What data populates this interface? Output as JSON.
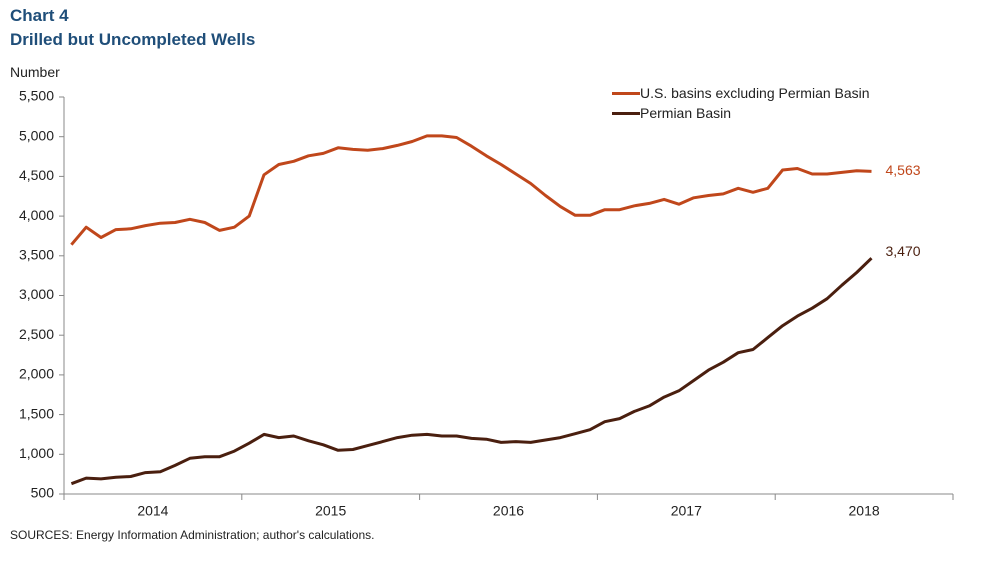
{
  "chart_data": {
    "type": "line",
    "title": "Chart 4",
    "subtitle": "Drilled but Uncompleted Wells",
    "y_label": "Number",
    "source": "SOURCES: Energy Information  Administration; author's calculations.",
    "x_labels": [
      "2014",
      "2015",
      "2016",
      "2017",
      "2018"
    ],
    "ylim": [
      500,
      5500
    ],
    "yticks": [
      500,
      {
        "value": 1000,
        "label": "1,000"
      },
      {
        "value": 1500,
        "label": "1,500"
      },
      {
        "value": 2000,
        "label": "2,000"
      },
      {
        "value": 2500,
        "label": "2,500"
      },
      {
        "value": 3000,
        "label": "3,000"
      },
      {
        "value": 3500,
        "label": "3,500"
      },
      {
        "value": 4000,
        "label": "4,000"
      },
      {
        "value": 4500,
        "label": "4,500"
      },
      {
        "value": 5000,
        "label": "5,000"
      },
      {
        "value": 5500,
        "label": "5,500"
      }
    ],
    "grid": false,
    "legend": "upper right",
    "series": [
      {
        "name": "U.S. basins excluding Permian Basin",
        "color": "#c0471b",
        "values": [
          3640,
          3860,
          3730,
          3830,
          3840,
          3880,
          3910,
          3920,
          3960,
          3920,
          3820,
          3860,
          4000,
          4520,
          4650,
          4690,
          4760,
          4790,
          4860,
          4840,
          4830,
          4850,
          4890,
          4940,
          5010,
          5010,
          4990,
          4880,
          4760,
          4650,
          4530,
          4410,
          4260,
          4120,
          4010,
          4010,
          4080,
          4080,
          4130,
          4160,
          4210,
          4150,
          4230,
          4260,
          4280,
          4350,
          4300,
          4350,
          4580,
          4600,
          4530,
          4530,
          4550,
          4570,
          4563
        ],
        "value_labels": [
          null,
          null,
          null,
          null,
          null,
          null,
          null,
          null,
          null,
          null,
          null,
          null,
          null,
          null,
          null,
          null,
          null,
          null,
          null,
          null,
          null,
          null,
          null,
          null,
          null,
          null,
          null,
          null,
          null,
          null,
          null,
          null,
          null,
          null,
          null,
          null,
          null,
          null,
          null,
          null,
          null,
          null,
          null,
          null,
          null,
          null,
          null,
          null,
          null,
          null,
          null,
          null,
          null,
          null,
          "4,563"
        ]
      },
      {
        "name": "Permian Basin",
        "color": "#4a1f0f",
        "values": [
          630,
          700,
          690,
          710,
          720,
          770,
          780,
          860,
          950,
          970,
          970,
          1040,
          1140,
          1250,
          1210,
          1230,
          1170,
          1120,
          1050,
          1060,
          1110,
          1160,
          1210,
          1240,
          1250,
          1230,
          1230,
          1200,
          1190,
          1150,
          1160,
          1150,
          1180,
          1210,
          1260,
          1310,
          1410,
          1450,
          1540,
          1610,
          1720,
          1800,
          1930,
          2060,
          2160,
          2280,
          2320,
          2470,
          2620,
          2740,
          2840,
          2960,
          3130,
          3290,
          3470
        ],
        "value_labels": [
          null,
          null,
          null,
          null,
          null,
          null,
          null,
          null,
          null,
          null,
          null,
          null,
          null,
          null,
          null,
          null,
          null,
          null,
          null,
          null,
          null,
          null,
          null,
          null,
          null,
          null,
          null,
          null,
          null,
          null,
          null,
          null,
          null,
          null,
          null,
          null,
          null,
          null,
          null,
          null,
          null,
          null,
          null,
          null,
          null,
          null,
          null,
          null,
          null,
          null,
          null,
          null,
          null,
          null,
          "3,470"
        ]
      }
    ]
  }
}
